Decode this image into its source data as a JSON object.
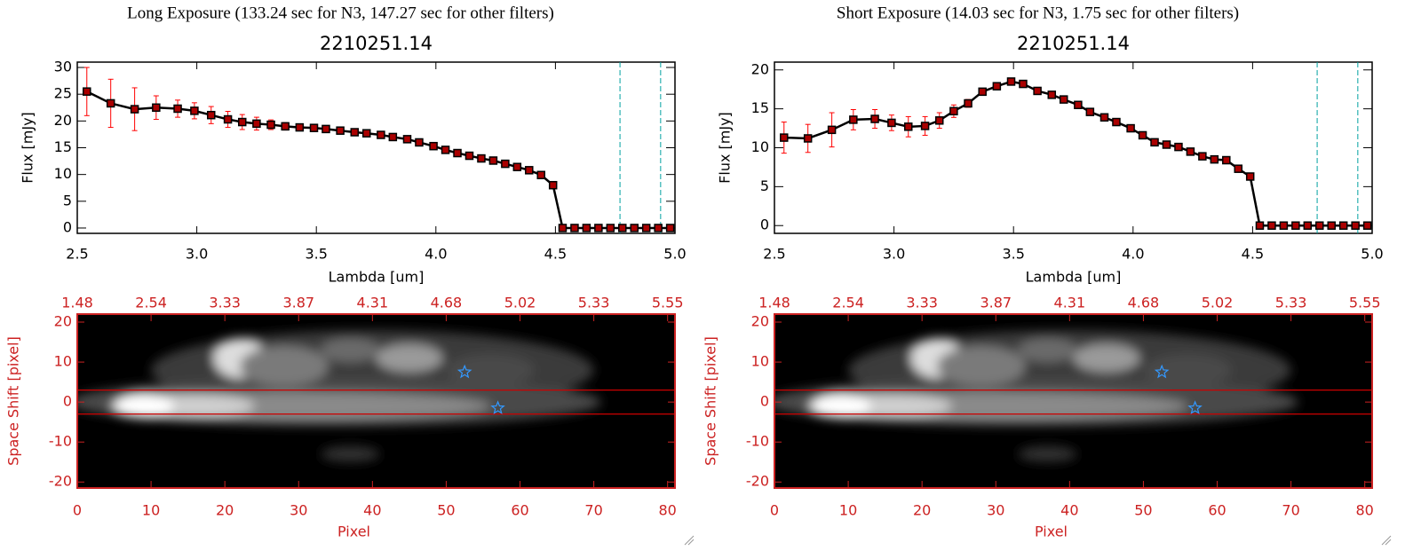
{
  "chart_data": [
    {
      "type": "line",
      "title": "Long Exposure (133.24 sec for N3, 147.27 sec for other filters)",
      "subtitle": "2210251.14",
      "xlabel": "Lambda [um]",
      "ylabel": "Flux [mJy]",
      "x": [
        2.54,
        2.64,
        2.74,
        2.83,
        2.92,
        2.99,
        3.06,
        3.13,
        3.19,
        3.25,
        3.31,
        3.37,
        3.43,
        3.49,
        3.54,
        3.6,
        3.66,
        3.71,
        3.77,
        3.82,
        3.88,
        3.93,
        3.99,
        4.04,
        4.09,
        4.14,
        4.19,
        4.24,
        4.29,
        4.34,
        4.39,
        4.44,
        4.49,
        4.53,
        4.58,
        4.63,
        4.68,
        4.73,
        4.78,
        4.83,
        4.88,
        4.93,
        4.98
      ],
      "values": [
        25.5,
        23.3,
        22.2,
        22.5,
        22.3,
        21.9,
        21.1,
        20.3,
        19.8,
        19.5,
        19.3,
        19.0,
        18.8,
        18.7,
        18.5,
        18.2,
        17.9,
        17.7,
        17.4,
        17.0,
        16.6,
        16.0,
        15.3,
        14.6,
        14.0,
        13.5,
        13.0,
        12.6,
        12.0,
        11.4,
        10.8,
        9.9,
        8.0,
        0,
        0,
        0,
        0,
        0,
        0,
        0,
        0,
        0,
        0
      ],
      "errors": [
        4.5,
        4.5,
        4.0,
        2.2,
        1.6,
        1.5,
        1.6,
        1.5,
        1.4,
        1.2,
        0.9,
        0.7,
        0.6,
        0.5,
        0.5,
        0.5,
        0.5,
        0.5,
        0.5,
        0.5,
        0.5,
        0.5,
        0.5,
        0.5,
        0.5,
        0.5,
        0.5,
        0.5,
        0.5,
        0.5,
        0.5,
        0.5,
        0.5,
        0,
        0,
        0,
        0,
        0,
        0,
        0,
        0,
        0,
        0
      ],
      "color": "#000000",
      "marker_color": "#aa0000",
      "error_color": "#ff0000",
      "xlim": [
        2.5,
        5.0
      ],
      "xticks": [
        2.5,
        {
          "value": 3.0,
          "label": "3.0"
        },
        3.5,
        {
          "value": 4.0,
          "label": "4.0"
        },
        4.5,
        {
          "value": 5.0,
          "label": "5.0"
        }
      ],
      "ylim": [
        -1,
        31
      ],
      "yticks": [
        0,
        5,
        10,
        15,
        20,
        25,
        30
      ],
      "vlines": [
        4.77,
        4.94
      ],
      "vline_color": "#00a0a0"
    },
    {
      "type": "image",
      "xlabel": "Pixel",
      "ylabel": "Space Shift [pixel]",
      "xlim": [
        0,
        81
      ],
      "xticks": [
        0,
        10,
        20,
        30,
        40,
        50,
        60,
        70,
        80
      ],
      "x2ticks": [
        {
          "value": 0,
          "label": "1.48"
        },
        {
          "value": 10,
          "label": "2.54"
        },
        {
          "value": 20,
          "label": "3.33"
        },
        {
          "value": 30,
          "label": "3.87"
        },
        {
          "value": 40,
          "label": "4.31"
        },
        {
          "value": 50,
          "label": "4.68"
        },
        {
          "value": 60,
          "label": "5.02"
        },
        {
          "value": 70,
          "label": "5.33"
        },
        {
          "value": 80,
          "label": "5.55"
        }
      ],
      "ylim": [
        -21.5,
        22
      ],
      "yticks": [
        -20,
        -10,
        0,
        10,
        20
      ],
      "hlines": [
        3,
        -3
      ],
      "hline_color": "#cc0000",
      "axis_color": "#cc2222",
      "stars": {
        "x": [
          52.5,
          57
        ],
        "y": [
          7.5,
          -1.5
        ]
      },
      "star_color": "#3399ff"
    },
    {
      "type": "line",
      "title": "Short Exposure (14.03 sec for N3, 1.75 sec for other filters)",
      "subtitle": "2210251.14",
      "xlabel": "Lambda [um]",
      "ylabel": "Flux [mJy]",
      "x": [
        2.54,
        2.64,
        2.74,
        2.83,
        2.92,
        2.99,
        3.06,
        3.13,
        3.19,
        3.25,
        3.31,
        3.37,
        3.43,
        3.49,
        3.54,
        3.6,
        3.66,
        3.71,
        3.77,
        3.82,
        3.88,
        3.93,
        3.99,
        4.04,
        4.09,
        4.14,
        4.19,
        4.24,
        4.29,
        4.34,
        4.39,
        4.44,
        4.49,
        4.53,
        4.58,
        4.63,
        4.68,
        4.73,
        4.78,
        4.83,
        4.88,
        4.93,
        4.98
      ],
      "values": [
        11.3,
        11.2,
        12.3,
        13.6,
        13.7,
        13.2,
        12.7,
        12.8,
        13.5,
        14.7,
        15.7,
        17.2,
        17.9,
        18.5,
        18.2,
        17.3,
        16.8,
        16.2,
        15.5,
        14.6,
        13.9,
        13.3,
        12.5,
        11.6,
        10.7,
        10.4,
        10.1,
        9.5,
        8.9,
        8.5,
        8.4,
        7.3,
        6.3,
        0,
        0,
        0,
        0,
        0,
        0,
        0,
        0,
        0,
        0
      ],
      "errors": [
        2.0,
        1.8,
        2.2,
        1.3,
        1.2,
        1.0,
        1.3,
        1.2,
        1.0,
        0.8,
        0.5,
        0.3,
        0.3,
        0.3,
        0.3,
        0.3,
        0.3,
        0.3,
        0.3,
        0.3,
        0.3,
        0.3,
        0.3,
        0.3,
        0.3,
        0.3,
        0.3,
        0.3,
        0.3,
        0.3,
        0.3,
        0.3,
        0.3,
        0,
        0,
        0,
        0,
        0,
        0,
        0,
        0,
        0,
        0
      ],
      "color": "#000000",
      "marker_color": "#aa0000",
      "error_color": "#ff0000",
      "xlim": [
        2.5,
        5.0
      ],
      "xticks": [
        2.5,
        {
          "value": 3.0,
          "label": "3.0"
        },
        3.5,
        {
          "value": 4.0,
          "label": "4.0"
        },
        4.5,
        {
          "value": 5.0,
          "label": "5.0"
        }
      ],
      "ylim": [
        -1,
        21
      ],
      "yticks": [
        0,
        5,
        10,
        15,
        20
      ],
      "vlines": [
        4.77,
        4.94
      ],
      "vline_color": "#00a0a0"
    },
    {
      "type": "image",
      "xlabel": "Pixel",
      "ylabel": "Space Shift [pixel]",
      "xlim": [
        0,
        81
      ],
      "xticks": [
        0,
        10,
        20,
        30,
        40,
        50,
        60,
        70,
        80
      ],
      "x2ticks": [
        {
          "value": 0,
          "label": "1.48"
        },
        {
          "value": 10,
          "label": "2.54"
        },
        {
          "value": 20,
          "label": "3.33"
        },
        {
          "value": 30,
          "label": "3.87"
        },
        {
          "value": 40,
          "label": "4.31"
        },
        {
          "value": 50,
          "label": "4.68"
        },
        {
          "value": 60,
          "label": "5.02"
        },
        {
          "value": 70,
          "label": "5.33"
        },
        {
          "value": 80,
          "label": "5.55"
        }
      ],
      "ylim": [
        -21.5,
        22
      ],
      "yticks": [
        -20,
        -10,
        0,
        10,
        20
      ],
      "hlines": [
        3,
        -3
      ],
      "hline_color": "#cc0000",
      "axis_color": "#cc2222",
      "stars": {
        "x": [
          52.5,
          57
        ],
        "y": [
          7.5,
          -1.5
        ]
      },
      "star_color": "#3399ff"
    }
  ]
}
